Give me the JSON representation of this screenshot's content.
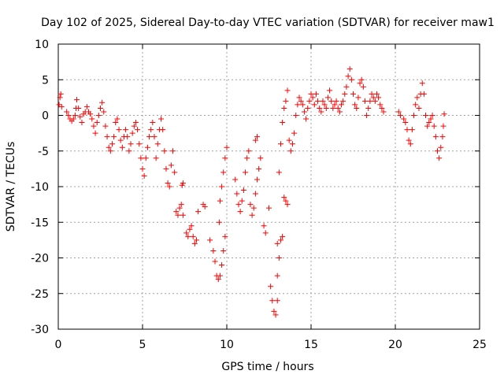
{
  "chart_data": {
    "type": "scatter",
    "title": "Day 102 of 2025, Sidereal Day-to-day VTEC variation (SDTVAR) for receiver maw1",
    "xlabel": "GPS time / hours",
    "ylabel": "SDTVAR / TECUs",
    "xlim": [
      0,
      25
    ],
    "ylim": [
      -30,
      10
    ],
    "xticks": [
      0,
      5,
      10,
      15,
      20,
      25
    ],
    "yticks": [
      -30,
      -25,
      -20,
      -15,
      -10,
      -5,
      0,
      5,
      10
    ],
    "xtick_labels": [
      "0",
      "5",
      "10",
      "15",
      "20",
      "25"
    ],
    "ytick_labels": [
      "-30",
      "-25",
      "-20",
      "-15",
      "-10",
      "-5",
      "0",
      "5",
      "10"
    ],
    "grid": true,
    "marker": "+",
    "marker_color": "#ff0000",
    "series": [
      {
        "name": "SDTVAR",
        "points": [
          [
            0.05,
            1.5
          ],
          [
            0.1,
            2.5
          ],
          [
            0.15,
            3.0
          ],
          [
            0.2,
            1.2
          ],
          [
            0.5,
            0.5
          ],
          [
            0.6,
            0.0
          ],
          [
            0.7,
            -0.5
          ],
          [
            0.8,
            -0.8
          ],
          [
            0.9,
            -0.5
          ],
          [
            1.0,
            0.0
          ],
          [
            1.05,
            1.0
          ],
          [
            1.1,
            2.2
          ],
          [
            1.2,
            1.0
          ],
          [
            1.3,
            -0.2
          ],
          [
            1.4,
            -1.0
          ],
          [
            1.5,
            0.2
          ],
          [
            1.6,
            0.5
          ],
          [
            1.7,
            1.2
          ],
          [
            1.8,
            0.5
          ],
          [
            1.9,
            0.2
          ],
          [
            2.0,
            -0.5
          ],
          [
            2.1,
            -1.5
          ],
          [
            2.2,
            -2.5
          ],
          [
            2.3,
            -1.0
          ],
          [
            2.4,
            0.0
          ],
          [
            2.5,
            1.0
          ],
          [
            2.6,
            1.8
          ],
          [
            2.7,
            0.5
          ],
          [
            2.8,
            -1.5
          ],
          [
            2.9,
            -3.0
          ],
          [
            3.0,
            -4.5
          ],
          [
            3.1,
            -5.0
          ],
          [
            3.2,
            -4.0
          ],
          [
            3.3,
            -3.0
          ],
          [
            3.4,
            -1.0
          ],
          [
            3.5,
            -0.5
          ],
          [
            3.6,
            -2.0
          ],
          [
            3.7,
            -3.5
          ],
          [
            3.8,
            -4.5
          ],
          [
            3.9,
            -3.0
          ],
          [
            4.0,
            -2.0
          ],
          [
            4.1,
            -3.0
          ],
          [
            4.2,
            -5.0
          ],
          [
            4.3,
            -4.0
          ],
          [
            4.4,
            -2.5
          ],
          [
            4.5,
            -1.5
          ],
          [
            4.6,
            -1.0
          ],
          [
            4.7,
            -2.0
          ],
          [
            4.8,
            -4.0
          ],
          [
            4.9,
            -6.0
          ],
          [
            5.0,
            -7.5
          ],
          [
            5.1,
            -8.5
          ],
          [
            5.2,
            -6.0
          ],
          [
            5.3,
            -4.5
          ],
          [
            5.4,
            -3.0
          ],
          [
            5.5,
            -2.0
          ],
          [
            5.6,
            -1.0
          ],
          [
            5.7,
            -3.0
          ],
          [
            5.8,
            -6.0
          ],
          [
            5.9,
            -4.0
          ],
          [
            6.0,
            -2.0
          ],
          [
            6.1,
            -0.5
          ],
          [
            6.2,
            -2.0
          ],
          [
            6.3,
            -5.0
          ],
          [
            6.4,
            -7.5
          ],
          [
            6.5,
            -9.5
          ],
          [
            6.6,
            -10.0
          ],
          [
            6.7,
            -7.0
          ],
          [
            6.8,
            -5.0
          ],
          [
            6.9,
            -8.0
          ],
          [
            7.0,
            -13.5
          ],
          [
            7.1,
            -14.0
          ],
          [
            7.2,
            -13.0
          ],
          [
            7.3,
            -12.5
          ],
          [
            7.4,
            -14.0
          ],
          [
            7.35,
            -9.8
          ],
          [
            7.4,
            -9.5
          ],
          [
            7.6,
            -16.5
          ],
          [
            7.7,
            -17.0
          ],
          [
            7.8,
            -16.0
          ],
          [
            7.9,
            -15.5
          ],
          [
            8.0,
            -17.0
          ],
          [
            8.1,
            -18.0
          ],
          [
            8.2,
            -17.5
          ],
          [
            8.3,
            -13.5
          ],
          [
            8.6,
            -12.5
          ],
          [
            8.7,
            -12.8
          ],
          [
            9.0,
            -17.5
          ],
          [
            9.2,
            -19.0
          ],
          [
            9.3,
            -20.5
          ],
          [
            9.4,
            -22.5
          ],
          [
            9.5,
            -23.0
          ],
          [
            9.6,
            -22.5
          ],
          [
            9.7,
            -21.0
          ],
          [
            9.8,
            -19.0
          ],
          [
            9.9,
            -17.0
          ],
          [
            9.55,
            -15.0
          ],
          [
            9.6,
            -12.0
          ],
          [
            9.7,
            -10.0
          ],
          [
            9.8,
            -8.0
          ],
          [
            9.9,
            -6.0
          ],
          [
            10.0,
            -4.5
          ],
          [
            10.5,
            -9.0
          ],
          [
            10.6,
            -11.0
          ],
          [
            10.7,
            -12.5
          ],
          [
            10.8,
            -13.5
          ],
          [
            10.9,
            -12.0
          ],
          [
            11.0,
            -10.5
          ],
          [
            11.1,
            -8.0
          ],
          [
            11.2,
            -6.0
          ],
          [
            11.3,
            -5.0
          ],
          [
            11.4,
            -12.5
          ],
          [
            11.5,
            -14.0
          ],
          [
            11.6,
            -13.0
          ],
          [
            11.7,
            -11.0
          ],
          [
            11.8,
            -9.0
          ],
          [
            11.9,
            -7.5
          ],
          [
            12.0,
            -6.0
          ],
          [
            11.7,
            -3.5
          ],
          [
            11.8,
            -3.0
          ],
          [
            12.2,
            -15.5
          ],
          [
            12.3,
            -16.5
          ],
          [
            12.5,
            -13.0
          ],
          [
            12.6,
            -24.0
          ],
          [
            12.7,
            -26.0
          ],
          [
            12.8,
            -27.5
          ],
          [
            12.9,
            -28.0
          ],
          [
            13.0,
            -26.0
          ],
          [
            13.0,
            -22.5
          ],
          [
            13.1,
            -20.0
          ],
          [
            13.2,
            -17.5
          ],
          [
            13.3,
            -17.0
          ],
          [
            13.4,
            -11.5
          ],
          [
            13.5,
            -12.0
          ],
          [
            13.6,
            -12.5
          ],
          [
            13.0,
            -18.0
          ],
          [
            13.1,
            -8.0
          ],
          [
            13.2,
            -4.0
          ],
          [
            13.3,
            -1.0
          ],
          [
            13.4,
            1.0
          ],
          [
            13.5,
            2.0
          ],
          [
            13.6,
            3.5
          ],
          [
            13.7,
            -3.5
          ],
          [
            13.8,
            -5.0
          ],
          [
            13.9,
            -4.0
          ],
          [
            14.0,
            -2.5
          ],
          [
            14.1,
            0.0
          ],
          [
            14.2,
            1.5
          ],
          [
            14.3,
            2.5
          ],
          [
            14.4,
            2.0
          ],
          [
            14.5,
            1.5
          ],
          [
            14.6,
            0.5
          ],
          [
            14.7,
            -0.5
          ],
          [
            14.8,
            1.0
          ],
          [
            14.9,
            2.0
          ],
          [
            15.0,
            3.0
          ],
          [
            15.1,
            2.5
          ],
          [
            15.2,
            1.5
          ],
          [
            15.3,
            3.0
          ],
          [
            15.4,
            2.0
          ],
          [
            15.5,
            1.0
          ],
          [
            15.6,
            0.5
          ],
          [
            15.7,
            2.0
          ],
          [
            15.8,
            1.5
          ],
          [
            15.9,
            1.0
          ],
          [
            16.0,
            2.5
          ],
          [
            16.1,
            3.5
          ],
          [
            16.2,
            2.0
          ],
          [
            16.3,
            1.0
          ],
          [
            16.4,
            1.5
          ],
          [
            16.5,
            2.0
          ],
          [
            16.6,
            1.0
          ],
          [
            16.7,
            0.5
          ],
          [
            16.8,
            1.5
          ],
          [
            16.9,
            2.0
          ],
          [
            17.0,
            3.0
          ],
          [
            17.1,
            4.0
          ],
          [
            17.2,
            5.5
          ],
          [
            17.3,
            6.5
          ],
          [
            17.4,
            5.0
          ],
          [
            17.5,
            3.0
          ],
          [
            17.6,
            1.5
          ],
          [
            17.7,
            1.0
          ],
          [
            17.8,
            2.5
          ],
          [
            17.9,
            4.5
          ],
          [
            18.0,
            5.0
          ],
          [
            18.1,
            4.0
          ],
          [
            18.2,
            2.0
          ],
          [
            18.3,
            0.0
          ],
          [
            18.4,
            1.0
          ],
          [
            18.5,
            2.0
          ],
          [
            18.6,
            3.0
          ],
          [
            18.7,
            2.5
          ],
          [
            18.8,
            2.0
          ],
          [
            18.9,
            3.0
          ],
          [
            19.0,
            2.5
          ],
          [
            19.1,
            1.5
          ],
          [
            19.2,
            1.0
          ],
          [
            19.3,
            0.5
          ],
          [
            20.2,
            0.5
          ],
          [
            20.3,
            0.0
          ],
          [
            20.5,
            -0.5
          ],
          [
            20.6,
            -1.0
          ],
          [
            20.7,
            -2.0
          ],
          [
            20.8,
            -3.5
          ],
          [
            20.9,
            -4.0
          ],
          [
            21.0,
            -2.0
          ],
          [
            21.1,
            0.0
          ],
          [
            21.2,
            1.5
          ],
          [
            21.3,
            2.5
          ],
          [
            21.4,
            1.0
          ],
          [
            21.5,
            3.0
          ],
          [
            21.6,
            4.5
          ],
          [
            21.7,
            3.0
          ],
          [
            21.8,
            0.0
          ],
          [
            21.9,
            -1.5
          ],
          [
            22.0,
            -1.0
          ],
          [
            22.1,
            -0.5
          ],
          [
            22.2,
            0.0
          ],
          [
            22.3,
            -1.5
          ],
          [
            22.4,
            -3.0
          ],
          [
            22.5,
            -5.0
          ],
          [
            22.6,
            -6.0
          ],
          [
            22.7,
            -4.5
          ],
          [
            22.8,
            -3.0
          ],
          [
            22.85,
            -1.5
          ],
          [
            22.9,
            0.2
          ]
        ]
      }
    ]
  }
}
